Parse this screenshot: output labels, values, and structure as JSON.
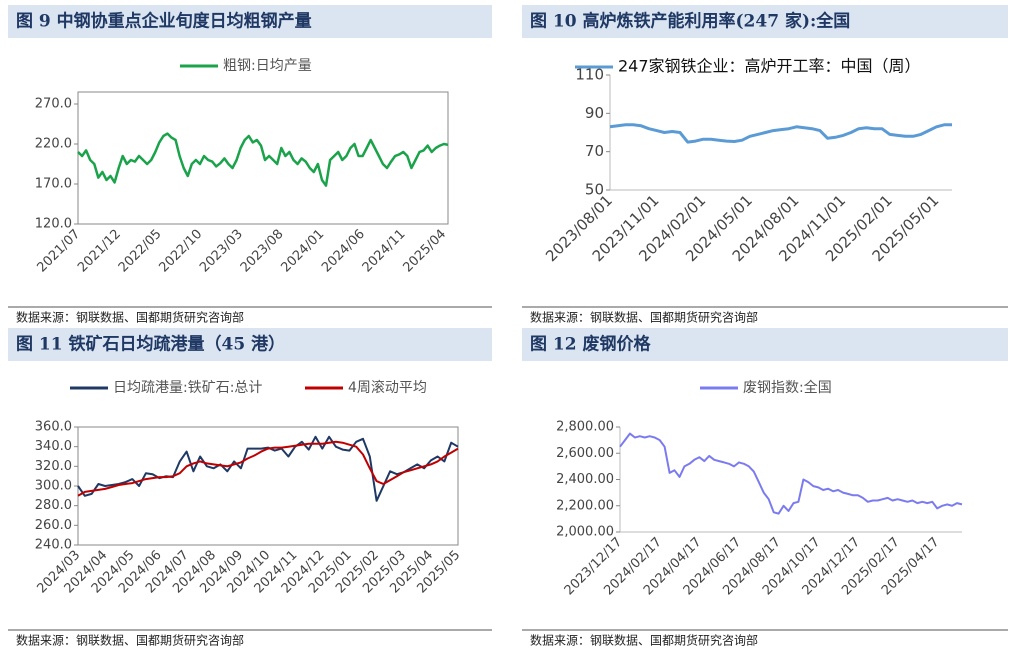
{
  "chart_data": [
    {
      "type": "line",
      "title": "图 9 中钢协重点企业旬度日均粗钢产量",
      "source": "数据来源：钢联数据、国都期货研究咨询部",
      "categories": [
        "2021/07",
        null,
        null,
        null,
        null,
        null,
        null,
        null,
        null,
        null,
        "2021/12",
        null,
        null,
        null,
        null,
        null,
        null,
        null,
        null,
        null,
        "2022/05",
        null,
        null,
        null,
        null,
        null,
        null,
        null,
        null,
        null,
        "2022/10",
        null,
        null,
        null,
        null,
        null,
        null,
        null,
        null,
        null,
        "2023/03",
        null,
        null,
        null,
        null,
        null,
        null,
        null,
        null,
        null,
        "2023/08",
        null,
        null,
        null,
        null,
        null,
        null,
        null,
        null,
        null,
        "2024/01",
        null,
        null,
        null,
        null,
        null,
        null,
        null,
        null,
        null,
        "2024/06",
        null,
        null,
        null,
        null,
        null,
        null,
        null,
        null,
        null,
        "2024/11",
        null,
        null,
        null,
        null,
        null,
        null,
        null,
        null,
        null,
        "2025/04",
        null
      ],
      "series": [
        {
          "name": "粗钢:日均产量",
          "color": "#1aa34a",
          "values": [
            210,
            205,
            212,
            200,
            195,
            178,
            185,
            175,
            180,
            172,
            190,
            205,
            195,
            200,
            198,
            205,
            200,
            195,
            200,
            210,
            222,
            230,
            233,
            228,
            225,
            205,
            190,
            180,
            195,
            200,
            195,
            205,
            200,
            198,
            192,
            196,
            202,
            195,
            190,
            200,
            215,
            225,
            230,
            222,
            225,
            218,
            200,
            205,
            200,
            195,
            215,
            205,
            210,
            200,
            195,
            202,
            198,
            190,
            185,
            195,
            175,
            168,
            200,
            205,
            210,
            200,
            205,
            215,
            220,
            205,
            205,
            215,
            225,
            215,
            205,
            195,
            190,
            198,
            205,
            207,
            210,
            205,
            190,
            200,
            210,
            212,
            218,
            210,
            215,
            218,
            220,
            219
          ]
        }
      ],
      "ylim": [
        120,
        285
      ],
      "yticks": [
        {
          "value": 120,
          "label": "120.0"
        },
        {
          "value": 170,
          "label": "170.0"
        },
        {
          "value": 220,
          "label": "220.0"
        },
        {
          "value": 270,
          "label": "270.0"
        }
      ]
    },
    {
      "type": "line",
      "title": "图 10 高炉炼铁产能利用率(247 家):全国",
      "source": "数据来源：钢联数据、国都期货研究咨询部",
      "categories": [
        "2023/08/01",
        null,
        null,
        null,
        null,
        null,
        "2023/11/01",
        null,
        null,
        null,
        null,
        null,
        "2024/02/01",
        null,
        null,
        null,
        null,
        null,
        "2024/05/01",
        null,
        null,
        null,
        null,
        null,
        "2024/08/01",
        null,
        null,
        null,
        null,
        null,
        "2024/11/01",
        null,
        null,
        null,
        null,
        null,
        "2025/02/01",
        null,
        null,
        null,
        null,
        null,
        "2025/05/01",
        null,
        null
      ],
      "series": [
        {
          "name": "247家钢铁企业：高炉开工率：中国（周）",
          "color": "#5b9bd5",
          "values": [
            83,
            83.5,
            84,
            84,
            83.5,
            82,
            81,
            80,
            80.5,
            80,
            75,
            75.5,
            76.5,
            76.5,
            76,
            75.5,
            75.3,
            76,
            78,
            79,
            80,
            81,
            81.5,
            82,
            83,
            82.5,
            82,
            81,
            77,
            77.5,
            78.5,
            80,
            82,
            82.5,
            82,
            82,
            79,
            78.5,
            78,
            78,
            79,
            81,
            83,
            84,
            84
          ]
        }
      ],
      "ylim": [
        50,
        110
      ],
      "yticks": [
        50,
        70,
        90,
        110
      ]
    },
    {
      "type": "line",
      "title": "图 11 铁矿石日均疏港量（45 港）",
      "source": "数据来源：钢联数据、国都期货研究咨询部",
      "categories": [
        "2024/03",
        null,
        null,
        null,
        "2024/04",
        null,
        null,
        null,
        "2024/05",
        null,
        null,
        null,
        "2024/06",
        null,
        null,
        null,
        "2024/07",
        null,
        null,
        null,
        "2024/08",
        null,
        null,
        null,
        "2024/09",
        null,
        null,
        null,
        "2024/10",
        null,
        null,
        null,
        "2024/11",
        null,
        null,
        null,
        "2024/12",
        null,
        null,
        null,
        "2025/01",
        null,
        null,
        null,
        "2025/02",
        null,
        null,
        null,
        "2025/03",
        null,
        null,
        null,
        "2025/04",
        null,
        null,
        null,
        "2025/05"
      ],
      "series": [
        {
          "name": "日均疏港量:铁矿石:总计",
          "color": "#1f3864",
          "values": [
            300,
            290,
            292,
            302,
            300,
            301,
            302,
            304,
            307,
            300,
            313,
            312,
            308,
            310,
            309,
            325,
            335,
            315,
            330,
            320,
            318,
            322,
            315,
            325,
            318,
            338,
            338,
            338,
            339,
            336,
            338,
            330,
            340,
            345,
            337,
            350,
            338,
            350,
            340,
            337,
            336,
            345,
            348,
            330,
            285,
            300,
            315,
            312,
            314,
            318,
            322,
            318,
            326,
            330,
            325,
            344,
            340
          ]
        },
        {
          "name": "4周滚动平均",
          "color": "#c00000",
          "values": [
            290,
            294,
            295,
            296,
            297,
            299,
            301,
            302,
            303,
            305,
            307,
            308,
            309,
            309,
            310,
            313,
            320,
            323,
            325,
            323,
            322,
            321,
            320,
            322,
            324,
            328,
            331,
            335,
            338,
            339,
            339,
            340,
            341,
            342,
            343,
            343,
            343,
            344,
            345,
            344,
            342,
            340,
            332,
            318,
            305,
            302,
            306,
            310,
            314,
            316,
            318,
            320,
            322,
            325,
            330,
            334,
            338
          ]
        }
      ],
      "ylim": [
        240,
        360
      ],
      "yticks": [
        {
          "value": 240,
          "label": "240.0"
        },
        {
          "value": 260,
          "label": "260.0"
        },
        {
          "value": 280,
          "label": "280.0"
        },
        {
          "value": 300,
          "label": "300.0"
        },
        {
          "value": 320,
          "label": "320.0"
        },
        {
          "value": 340,
          "label": "340.0"
        },
        {
          "value": 360,
          "label": "360.0"
        }
      ]
    },
    {
      "type": "line",
      "title": "图 12 废钢价格",
      "source": "数据来源：钢联数据、国都期货研究咨询部",
      "categories": [
        "2023/12/17",
        null,
        null,
        null,
        null,
        null,
        null,
        null,
        "2024/02/17",
        null,
        null,
        null,
        null,
        null,
        null,
        null,
        "2024/04/17",
        null,
        null,
        null,
        null,
        null,
        null,
        null,
        "2024/06/17",
        null,
        null,
        null,
        null,
        null,
        null,
        null,
        "2024/08/17",
        null,
        null,
        null,
        null,
        null,
        null,
        null,
        "2024/10/17",
        null,
        null,
        null,
        null,
        null,
        null,
        null,
        "2024/12/17",
        null,
        null,
        null,
        null,
        null,
        null,
        null,
        "2025/02/17",
        null,
        null,
        null,
        null,
        null,
        null,
        null,
        "2025/04/17",
        null,
        null,
        null,
        null,
        null
      ],
      "series": [
        {
          "name": "废钢指数:全国",
          "color": "#7b7bf0",
          "values": [
            2650,
            2700,
            2750,
            2720,
            2730,
            2720,
            2730,
            2720,
            2700,
            2650,
            2450,
            2470,
            2420,
            2500,
            2520,
            2550,
            2570,
            2540,
            2580,
            2550,
            2540,
            2530,
            2520,
            2500,
            2530,
            2520,
            2500,
            2460,
            2380,
            2300,
            2250,
            2150,
            2140,
            2200,
            2160,
            2220,
            2230,
            2400,
            2380,
            2350,
            2340,
            2320,
            2330,
            2310,
            2320,
            2300,
            2290,
            2280,
            2280,
            2260,
            2230,
            2240,
            2240,
            2250,
            2260,
            2240,
            2250,
            2240,
            2230,
            2240,
            2220,
            2230,
            2220,
            2230,
            2180,
            2200,
            2210,
            2200,
            2220,
            2210
          ]
        }
      ],
      "ylim": [
        2000,
        2800
      ],
      "yticks": [
        {
          "value": 2000,
          "label": "2,000.00"
        },
        {
          "value": 2200,
          "label": "2,200.00"
        },
        {
          "value": 2400,
          "label": "2,400.00"
        },
        {
          "value": 2600,
          "label": "2,600.00"
        },
        {
          "value": 2800,
          "label": "2,800.00"
        }
      ]
    }
  ]
}
